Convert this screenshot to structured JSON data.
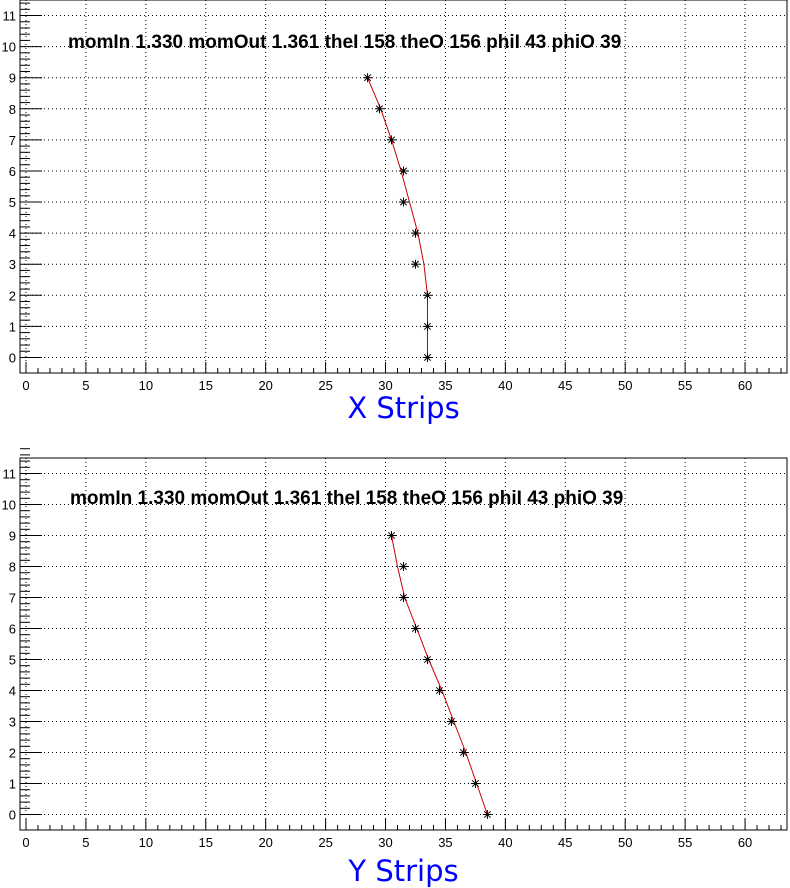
{
  "chart_data": [
    {
      "type": "scatter",
      "annotation": "momIn 1.330 momOut 1.361 theI 158 theO 156 phiI 43 phiO 39",
      "xlabel": "X Strips",
      "ylabel": "",
      "xlim": [
        -0.5,
        63.5
      ],
      "ylim": [
        -0.5,
        11.5
      ],
      "x_ticks": [
        0,
        5,
        10,
        15,
        20,
        25,
        30,
        35,
        40,
        45,
        50,
        55,
        60
      ],
      "y_ticks": [
        0,
        1,
        2,
        3,
        4,
        5,
        6,
        7,
        8,
        9,
        10,
        11
      ],
      "grid": true,
      "marker_color": "#000000",
      "line_color": "#cc0000",
      "xlabel_color": "#0000ff",
      "points": {
        "x": [
          33.5,
          33.5,
          33.5,
          32.5,
          32.5,
          31.5,
          31.5,
          30.5,
          29.5,
          28.5
        ],
        "y": [
          0,
          1,
          2,
          3,
          4,
          5,
          6,
          7,
          8,
          9
        ]
      },
      "fit_line": {
        "x": [
          33.5,
          33.5,
          33.5,
          33.2,
          32.7,
          32.0,
          31.3,
          30.5,
          29.6,
          28.5
        ],
        "y": [
          0,
          1,
          2,
          3,
          4,
          5,
          6,
          7,
          8,
          9
        ]
      }
    },
    {
      "type": "scatter",
      "annotation": "momIn 1.330 momOut 1.361 theI 158 theO 156 phiI 43 phiO 39",
      "xlabel": "Y Strips",
      "ylabel": "",
      "xlim": [
        -0.5,
        63.5
      ],
      "ylim": [
        -0.5,
        11.5
      ],
      "x_ticks": [
        0,
        5,
        10,
        15,
        20,
        25,
        30,
        35,
        40,
        45,
        50,
        55,
        60
      ],
      "y_ticks": [
        0,
        1,
        2,
        3,
        4,
        5,
        6,
        7,
        8,
        9,
        10,
        11
      ],
      "grid": true,
      "marker_color": "#000000",
      "line_color": "#cc0000",
      "xlabel_color": "#0000ff",
      "points": {
        "x": [
          38.5,
          37.5,
          36.5,
          35.5,
          34.5,
          33.5,
          32.5,
          31.5,
          31.5,
          30.5
        ],
        "y": [
          0,
          1,
          2,
          3,
          4,
          5,
          6,
          7,
          8,
          9
        ]
      },
      "fit_line": {
        "x": [
          38.5,
          37.6,
          36.7,
          35.7,
          34.7,
          33.6,
          32.6,
          31.6,
          31.0,
          30.5
        ],
        "y": [
          0,
          1,
          2,
          3,
          4,
          5,
          6,
          7,
          8,
          9
        ]
      }
    }
  ]
}
